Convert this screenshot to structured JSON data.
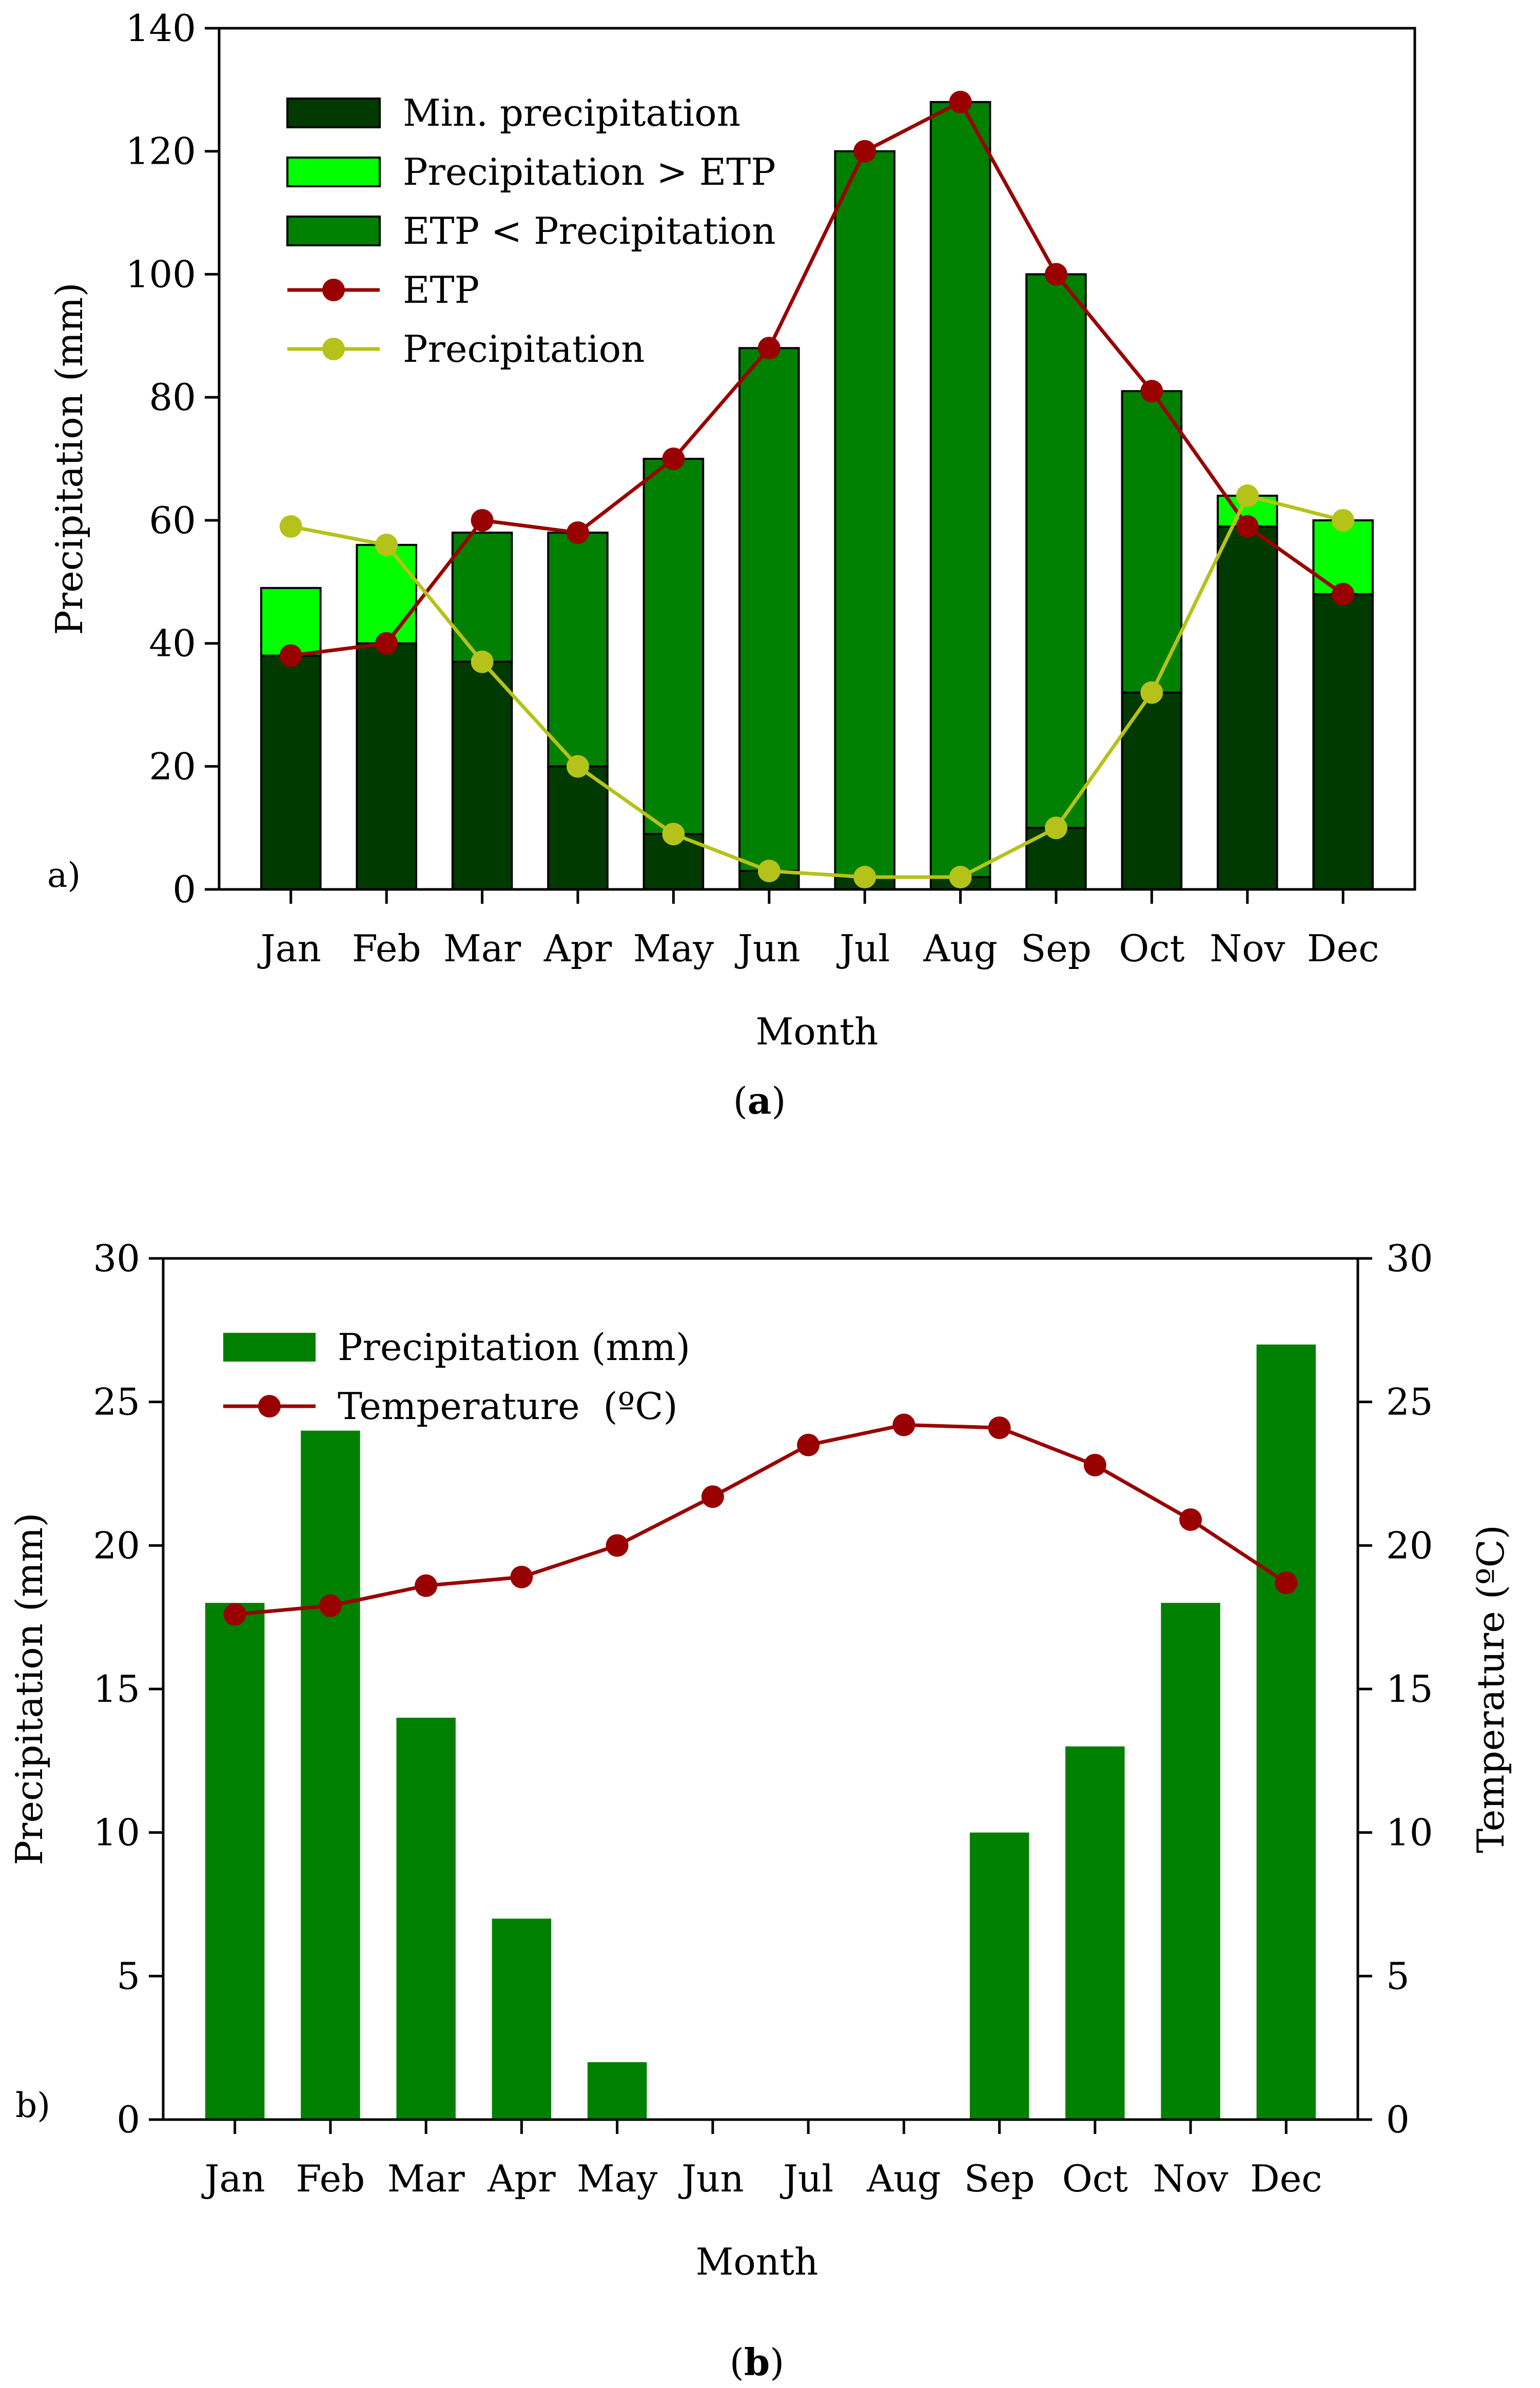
{
  "colors": {
    "min_precip": "#003a00",
    "precip_gt_etp": "#00ff00",
    "etp_lt_precip": "#008000",
    "etp_line": "#990000",
    "precip_line": "#b5c21a",
    "bar_b": "#008000",
    "temp_line": "#990000"
  },
  "chart_data": [
    {
      "type": "bar",
      "panel_tag": "a)",
      "caption_open": "(",
      "caption_letter": "a",
      "caption_close": ")",
      "xlabel": "Month",
      "ylabel": "Precipitation (mm)",
      "categories": [
        "Jan",
        "Feb",
        "Mar",
        "Apr",
        "May",
        "Jun",
        "Jul",
        "Aug",
        "Sep",
        "Oct",
        "Nov",
        "Dec"
      ],
      "ylim": [
        0,
        140
      ],
      "yticks": [
        0,
        20,
        40,
        60,
        80,
        100,
        120,
        140
      ],
      "legend_position": "top-left",
      "stacked_bars": [
        {
          "name": "Min. precipitation",
          "color_key": "min_precip",
          "values": [
            38,
            40,
            37,
            20,
            9,
            3,
            2,
            2,
            10,
            32,
            59,
            48
          ]
        },
        {
          "name": "Precipitation > ETP",
          "color_key": "precip_gt_etp",
          "values": [
            11,
            16,
            0,
            0,
            0,
            0,
            0,
            0,
            0,
            0,
            5,
            12
          ]
        },
        {
          "name": "ETP < Precipitation",
          "color_key": "etp_lt_precip",
          "values": [
            0,
            0,
            21,
            38,
            61,
            85,
            118,
            126,
            90,
            49,
            0,
            0
          ]
        }
      ],
      "lines": [
        {
          "name": "ETP",
          "color_key": "etp_line",
          "values": [
            38,
            40,
            60,
            58,
            70,
            88,
            120,
            128,
            100,
            81,
            59,
            48
          ]
        },
        {
          "name": "Precipitation",
          "color_key": "precip_line",
          "values": [
            59,
            56,
            37,
            20,
            9,
            3,
            2,
            2,
            10,
            32,
            64,
            60
          ]
        }
      ]
    },
    {
      "type": "bar",
      "panel_tag": "b)",
      "caption_open": "(",
      "caption_letter": "b",
      "caption_close": ")",
      "xlabel": "Month",
      "ylabel": "Precipitation (mm)",
      "y2label": "Temperature (ºC)",
      "categories": [
        "Jan",
        "Feb",
        "Mar",
        "Apr",
        "May",
        "Jun",
        "Jul",
        "Aug",
        "Sep",
        "Oct",
        "Nov",
        "Dec"
      ],
      "ylim": [
        0,
        30
      ],
      "y2lim": [
        0,
        30
      ],
      "yticks": [
        0,
        5,
        10,
        15,
        20,
        25,
        30
      ],
      "legend_position": "top-left",
      "bars": {
        "name": "Precipitation (mm)",
        "color_key": "bar_b",
        "values": [
          18,
          24,
          14,
          7,
          2,
          0,
          0,
          0,
          10,
          13,
          18,
          27
        ]
      },
      "line": {
        "name": "Temperature  (ºC)",
        "color_key": "temp_line",
        "values": [
          17.6,
          17.9,
          18.6,
          18.9,
          20.0,
          21.7,
          23.5,
          24.2,
          24.1,
          22.8,
          20.9,
          18.7
        ]
      }
    }
  ]
}
